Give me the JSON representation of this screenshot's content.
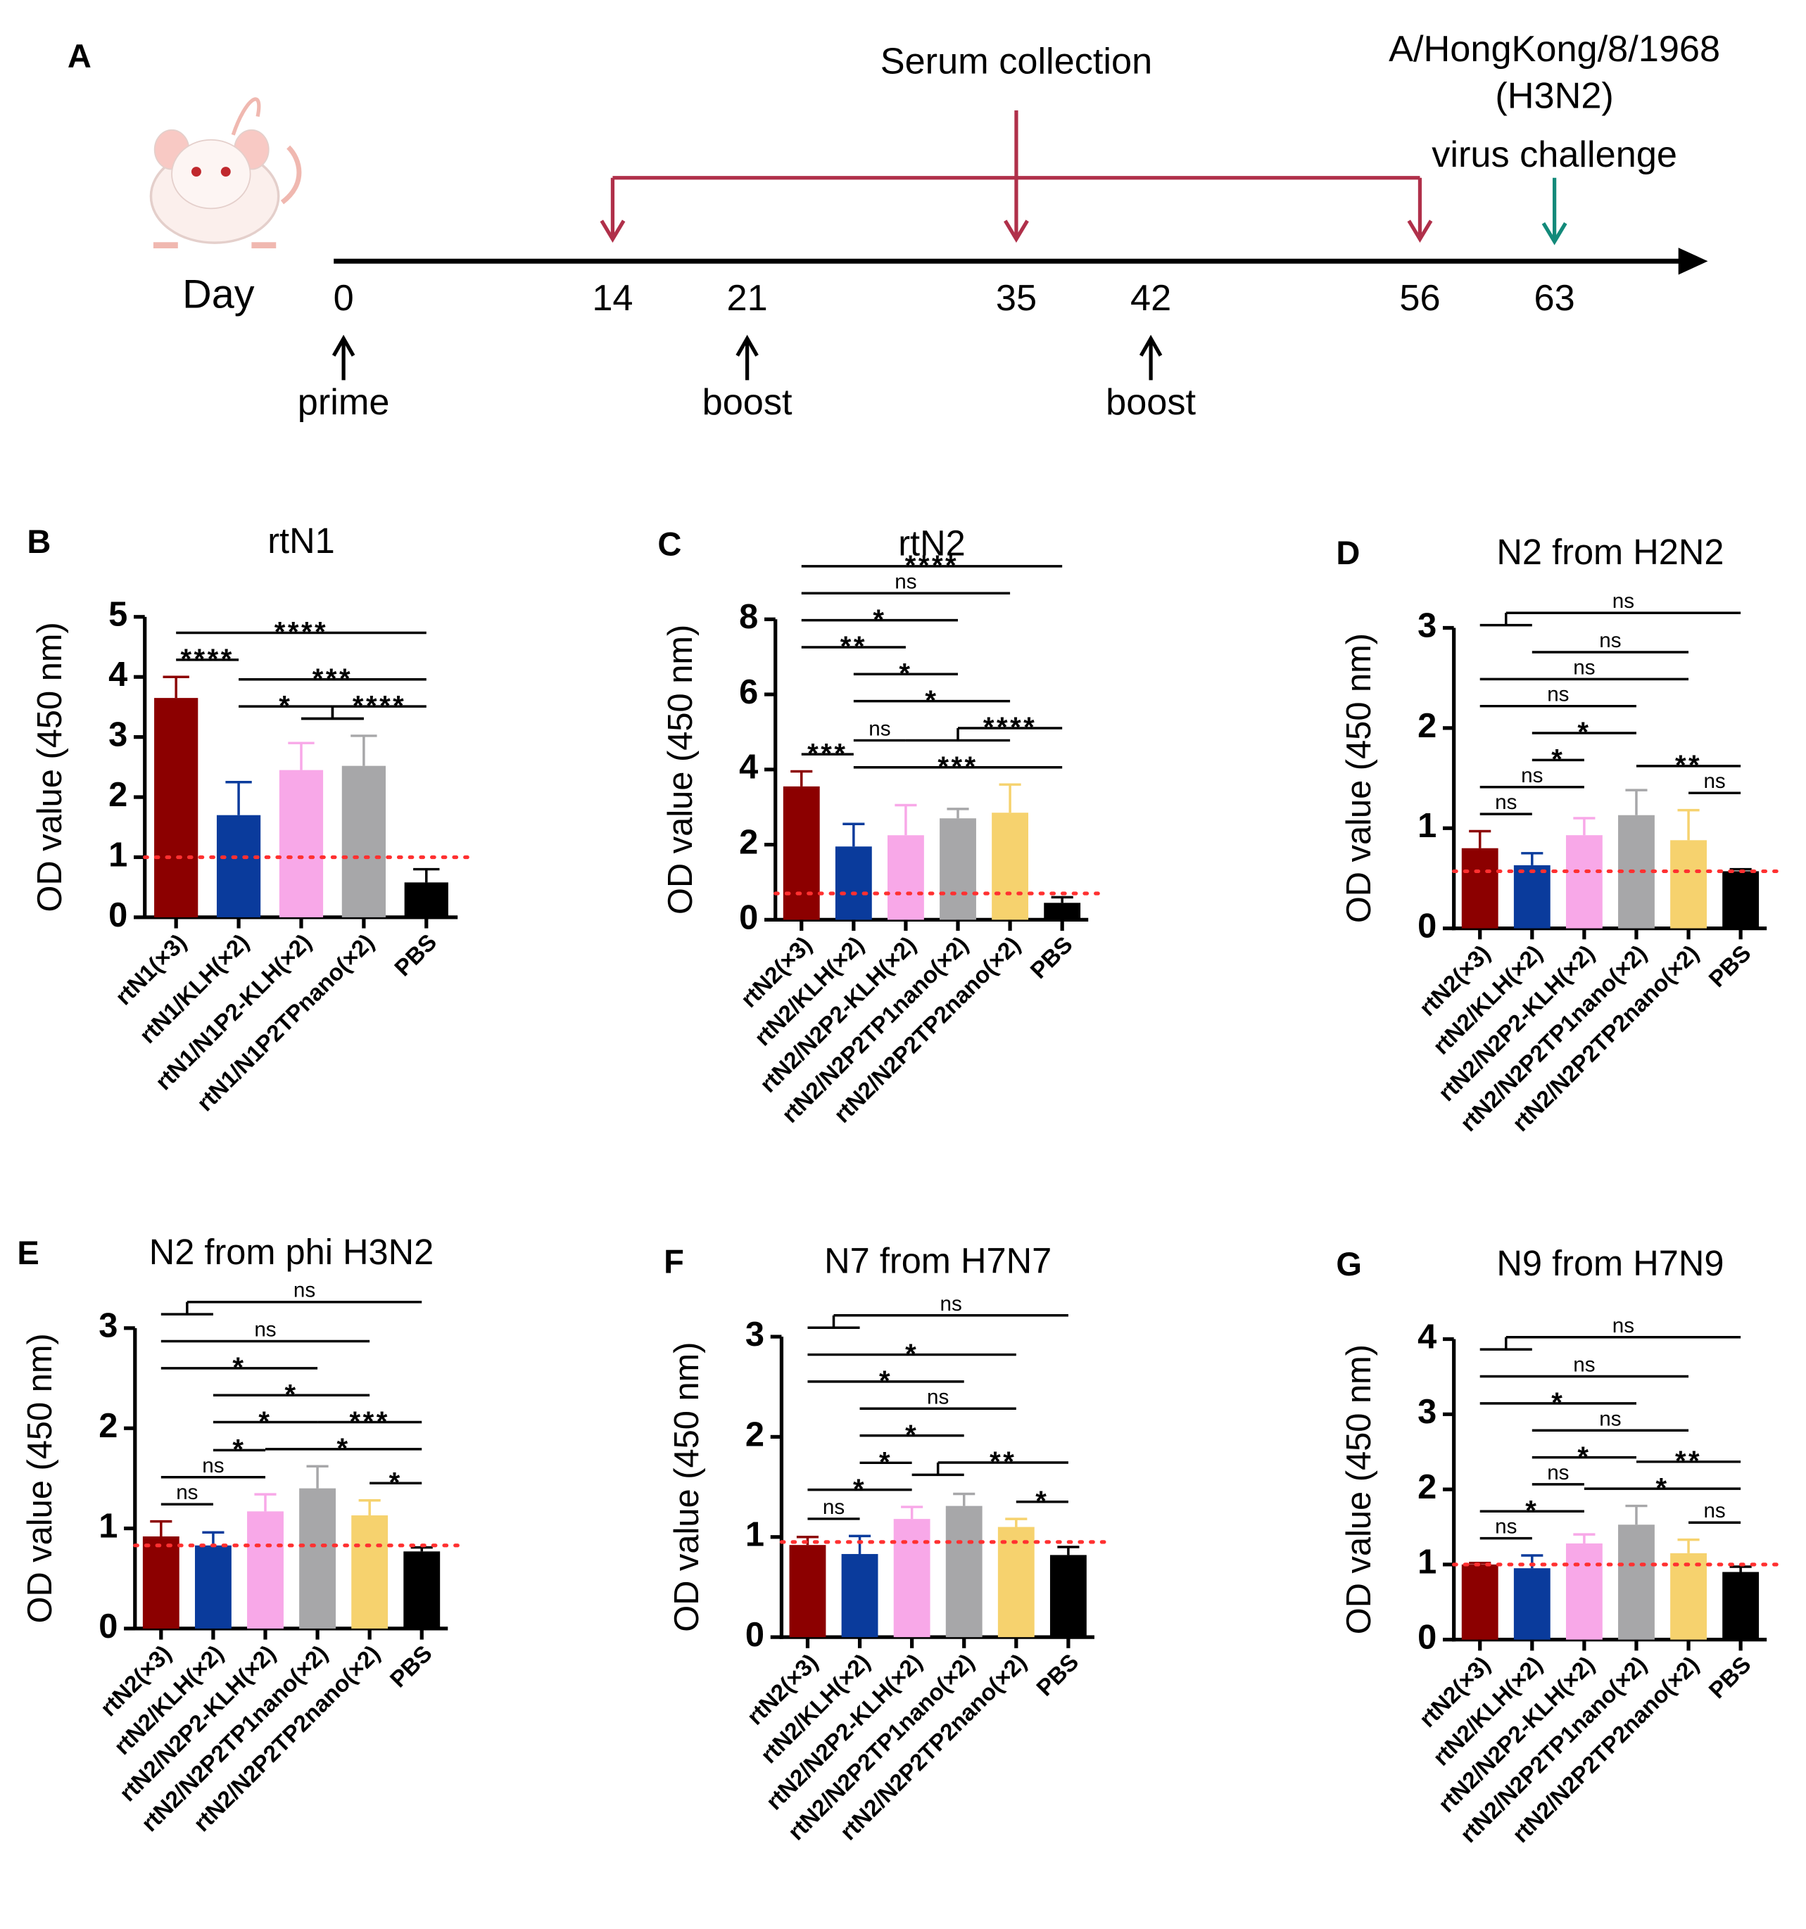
{
  "timeline": {
    "panel": "A",
    "day_label": "Day",
    "days": [
      0,
      14,
      21,
      35,
      42,
      56,
      63
    ],
    "serum_collection": {
      "label": "Serum collection",
      "days": [
        14,
        35,
        56
      ]
    },
    "challenge": {
      "lines": [
        "A/HongKong/8/1968",
        "(H3N2)",
        "virus challenge"
      ],
      "day": 63
    },
    "immunizations": [
      {
        "label": "prime",
        "day": 0
      },
      {
        "label": "boost",
        "day": 21
      },
      {
        "label": "boost",
        "day": 42
      }
    ]
  },
  "chart_data": [
    {
      "type": "bar",
      "panel": "B",
      "title": "rtN1",
      "y_label": "OD value (450 nm)",
      "categories": [
        "rtN1(×3)",
        "rtN1/KLH(×2)",
        "rtN1/N1P2-KLH(×2)",
        "rtN1/N1P2TPnano(×2)",
        "PBS"
      ],
      "values": [
        3.65,
        1.7,
        2.45,
        2.52,
        0.58
      ],
      "errors": [
        0.35,
        0.55,
        0.45,
        0.5,
        0.22
      ],
      "colors": [
        "#8c0000",
        "#0a3b9c",
        "#f8a8e8",
        "#a7a7a9",
        "#000000"
      ],
      "ylim": [
        0,
        5
      ],
      "yticks": [
        0,
        1,
        2,
        3,
        4,
        5
      ],
      "threshold": 1.0,
      "comparisons": [
        {
          "a": 1,
          "b": [
            2,
            3
          ],
          "label": "*"
        },
        {
          "a": [
            2,
            3
          ],
          "b": 4,
          "label": "****"
        },
        {
          "a": 0,
          "b": 1,
          "label": "****"
        },
        {
          "a": 1,
          "b": 4,
          "label": "***"
        },
        {
          "a": 0,
          "b": 4,
          "label": "****"
        }
      ]
    },
    {
      "type": "bar",
      "panel": "C",
      "title": "rtN2",
      "y_label": "OD value (450 nm)",
      "categories": [
        "rtN2(×3)",
        "rtN2/KLH(×2)",
        "rtN2/N2P2-KLH(×2)",
        "rtN2/N2P2TP1nano(×2)",
        "rtN2/N2P2TP2nano(×2)",
        "PBS"
      ],
      "values": [
        3.55,
        1.95,
        2.25,
        2.7,
        2.85,
        0.45
      ],
      "errors": [
        0.4,
        0.6,
        0.8,
        0.25,
        0.75,
        0.15
      ],
      "colors": [
        "#8c0000",
        "#0a3b9c",
        "#f8a8e8",
        "#a7a7a9",
        "#f6d26e",
        "#000000"
      ],
      "ylim": [
        0,
        8
      ],
      "yticks": [
        0,
        2,
        4,
        6,
        8
      ],
      "threshold": 0.7,
      "comparisons": [
        {
          "a": 1,
          "b": 5,
          "label": "***"
        },
        {
          "a": 1,
          "b": 2,
          "label": "ns"
        },
        {
          "a": [
            2,
            3,
            4
          ],
          "b": 5,
          "label": "****"
        },
        {
          "a": 1,
          "b": 4,
          "label": "*"
        },
        {
          "a": 0,
          "b": 1,
          "label": "***"
        },
        {
          "a": 1,
          "b": 3,
          "label": "*"
        },
        {
          "a": 0,
          "b": 2,
          "label": "**"
        },
        {
          "a": 0,
          "b": 3,
          "label": "*"
        },
        {
          "a": 0,
          "b": 4,
          "label": "ns"
        },
        {
          "a": 0,
          "b": 5,
          "label": "****"
        }
      ]
    },
    {
      "type": "bar",
      "panel": "D",
      "title": "N2 from H2N2",
      "y_label": "OD value (450 nm)",
      "categories": [
        "rtN2(×3)",
        "rtN2/KLH(×2)",
        "rtN2/N2P2-KLH(×2)",
        "rtN2/N2P2TP1nano(×2)",
        "rtN2/N2P2TP2nano(×2)",
        "PBS"
      ],
      "values": [
        0.8,
        0.63,
        0.93,
        1.13,
        0.88,
        0.57
      ],
      "errors": [
        0.17,
        0.12,
        0.17,
        0.25,
        0.3,
        0.02
      ],
      "colors": [
        "#8c0000",
        "#0a3b9c",
        "#f8a8e8",
        "#a7a7a9",
        "#f6d26e",
        "#000000"
      ],
      "ylim": [
        0,
        3
      ],
      "yticks": [
        0,
        1,
        2,
        3
      ],
      "threshold": 0.57,
      "comparisons": [
        {
          "a": 0,
          "b": 1,
          "label": "ns"
        },
        {
          "a": 4,
          "b": 5,
          "label": "ns"
        },
        {
          "a": 0,
          "b": 2,
          "label": "ns"
        },
        {
          "a": 3,
          "b": 5,
          "label": "**"
        },
        {
          "a": 1,
          "b": 2,
          "label": "*"
        },
        {
          "a": 1,
          "b": 3,
          "label": "*"
        },
        {
          "a": 0,
          "b": 3,
          "label": "ns"
        },
        {
          "a": 0,
          "b": 4,
          "label": "ns"
        },
        {
          "a": 1,
          "b": 4,
          "label": "ns"
        },
        {
          "a": [
            0,
            1
          ],
          "b": 5,
          "label": "ns"
        }
      ]
    },
    {
      "type": "bar",
      "panel": "E",
      "title": "N2 from phi H3N2",
      "y_label": "OD value (450 nm)",
      "categories": [
        "rtN2(×3)",
        "rtN2/KLH(×2)",
        "rtN2/N2P2-KLH(×2)",
        "rtN2/N2P2TP1nano(×2)",
        "rtN2/N2P2TP2nano(×2)",
        "PBS"
      ],
      "values": [
        0.92,
        0.83,
        1.17,
        1.4,
        1.13,
        0.77
      ],
      "errors": [
        0.15,
        0.13,
        0.17,
        0.22,
        0.15,
        0.04
      ],
      "colors": [
        "#8c0000",
        "#0a3b9c",
        "#f8a8e8",
        "#a7a7a9",
        "#f6d26e",
        "#000000"
      ],
      "ylim": [
        0,
        3
      ],
      "yticks": [
        0,
        1,
        2,
        3
      ],
      "threshold": 0.83,
      "comparisons": [
        {
          "a": 0,
          "b": 1,
          "label": "ns"
        },
        {
          "a": 4,
          "b": 5,
          "label": "*"
        },
        {
          "a": 0,
          "b": 2,
          "label": "ns"
        },
        {
          "a": 2,
          "b": 5,
          "label": "*"
        },
        {
          "a": 1,
          "b": 2,
          "label": "*"
        },
        {
          "a": 3,
          "b": 5,
          "label": "***"
        },
        {
          "a": 1,
          "b": 3,
          "label": "*"
        },
        {
          "a": 1,
          "b": 4,
          "label": "*"
        },
        {
          "a": 0,
          "b": 3,
          "label": "*"
        },
        {
          "a": 0,
          "b": 4,
          "label": "ns"
        },
        {
          "a": [
            0,
            1
          ],
          "b": 5,
          "label": "ns"
        }
      ]
    },
    {
      "type": "bar",
      "panel": "F",
      "title": "N7 from H7N7",
      "y_label": "OD value (450 nm)",
      "categories": [
        "rtN2(×3)",
        "rtN2/KLH(×2)",
        "rtN2/N2P2-KLH(×2)",
        "rtN2/N2P2TP1nano(×2)",
        "rtN2/N2P2TP2nano(×2)",
        "PBS"
      ],
      "values": [
        0.92,
        0.83,
        1.18,
        1.31,
        1.1,
        0.82
      ],
      "errors": [
        0.08,
        0.18,
        0.12,
        0.12,
        0.08,
        0.08
      ],
      "colors": [
        "#8c0000",
        "#0a3b9c",
        "#f8a8e8",
        "#a7a7a9",
        "#f6d26e",
        "#000000"
      ],
      "ylim": [
        0,
        3
      ],
      "yticks": [
        0,
        1,
        2,
        3
      ],
      "threshold": 0.95,
      "comparisons": [
        {
          "a": 0,
          "b": 1,
          "label": "ns"
        },
        {
          "a": 4,
          "b": 5,
          "label": "*"
        },
        {
          "a": 0,
          "b": 2,
          "label": "*"
        },
        {
          "a": [
            2,
            3
          ],
          "b": 5,
          "label": "**"
        },
        {
          "a": 1,
          "b": 2,
          "label": "*"
        },
        {
          "a": 1,
          "b": 3,
          "label": "*"
        },
        {
          "a": 1,
          "b": 4,
          "label": "ns"
        },
        {
          "a": 0,
          "b": 3,
          "label": "*"
        },
        {
          "a": 0,
          "b": 4,
          "label": "*"
        },
        {
          "a": [
            0,
            1
          ],
          "b": 5,
          "label": "ns"
        }
      ]
    },
    {
      "type": "bar",
      "panel": "G",
      "title": "N9 from H7N9",
      "y_label": "OD value (450 nm)",
      "categories": [
        "rtN2(×3)",
        "rtN2/KLH(×2)",
        "rtN2/N2P2-KLH(×2)",
        "rtN2/N2P2TP1nano(×2)",
        "rtN2/N2P2TP2nano(×2)",
        "PBS"
      ],
      "values": [
        1.0,
        0.95,
        1.28,
        1.53,
        1.15,
        0.9
      ],
      "errors": [
        0.02,
        0.17,
        0.12,
        0.25,
        0.18,
        0.07
      ],
      "colors": [
        "#8c0000",
        "#0a3b9c",
        "#f8a8e8",
        "#a7a7a9",
        "#f6d26e",
        "#000000"
      ],
      "ylim": [
        0,
        4
      ],
      "yticks": [
        0,
        1,
        2,
        3,
        4
      ],
      "threshold": 1.0,
      "comparisons": [
        {
          "a": 0,
          "b": 1,
          "label": "ns"
        },
        {
          "a": 4,
          "b": 5,
          "label": "ns"
        },
        {
          "a": 0,
          "b": 2,
          "label": "*"
        },
        {
          "a": 2,
          "b": 5,
          "label": "*"
        },
        {
          "a": 1,
          "b": 2,
          "label": "ns"
        },
        {
          "a": 3,
          "b": 5,
          "label": "**"
        },
        {
          "a": 1,
          "b": 3,
          "label": "*"
        },
        {
          "a": 1,
          "b": 4,
          "label": "ns"
        },
        {
          "a": 0,
          "b": 3,
          "label": "*"
        },
        {
          "a": 0,
          "b": 4,
          "label": "ns"
        },
        {
          "a": [
            0,
            1
          ],
          "b": 5,
          "label": "ns"
        }
      ]
    }
  ]
}
